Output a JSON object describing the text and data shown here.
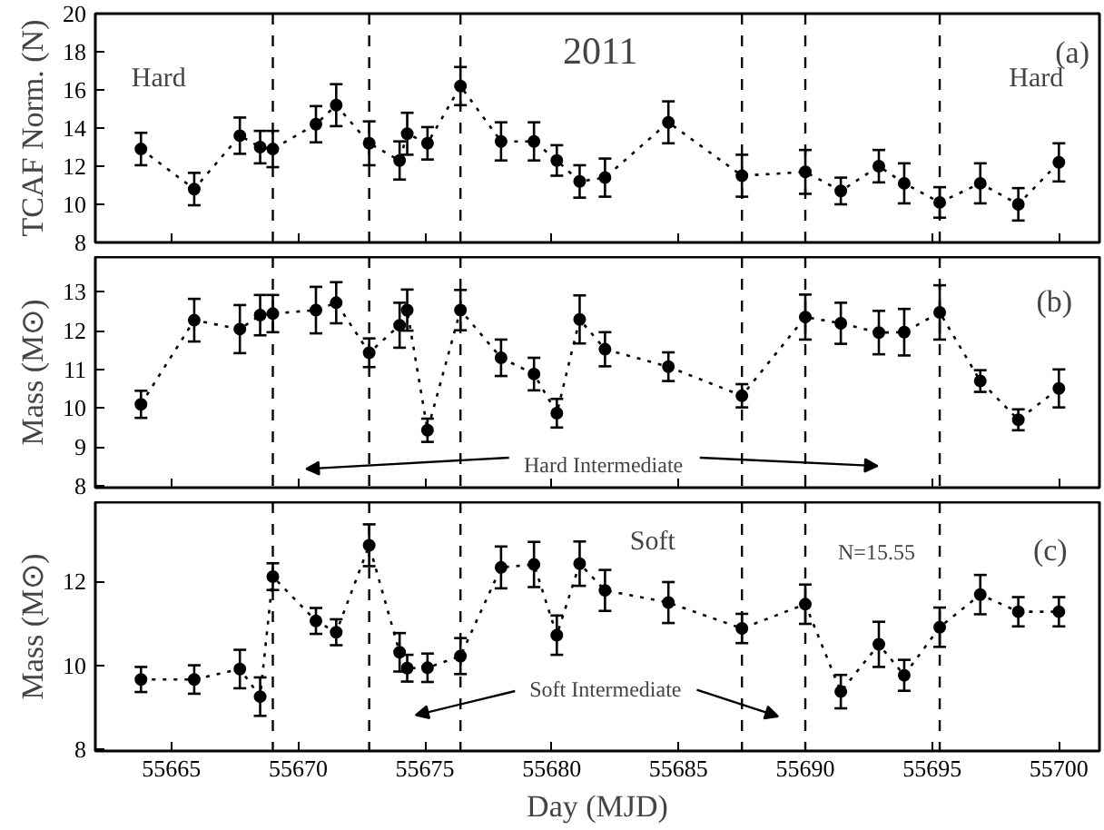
{
  "chart_data": [
    {
      "type": "line",
      "ylabel": "TCAF Norm. (N)",
      "annotations": [
        "2011",
        "Hard",
        "Hard",
        "(a)"
      ],
      "x": [
        55663.8,
        55665.9,
        55667.7,
        55668.5,
        55669.0,
        55670.7,
        55671.5,
        55672.8,
        55674.0,
        55674.3,
        55675.1,
        55676.4,
        55678.0,
        55679.3,
        55680.2,
        55681.1,
        55682.1,
        55684.6,
        55687.5,
        55690.0,
        55691.4,
        55692.9,
        55693.9,
        55695.3,
        55696.9,
        55698.4,
        55700.0
      ],
      "series": [
        {
          "color": "#000000",
          "values": [
            12.9,
            10.8,
            13.6,
            13.0,
            12.9,
            14.2,
            15.2,
            13.2,
            12.3,
            13.7,
            13.2,
            16.2,
            13.3,
            13.3,
            12.3,
            11.2,
            11.4,
            14.3,
            11.5,
            11.7,
            10.7,
            12.0,
            11.1,
            10.1,
            11.1,
            10.0,
            12.2
          ],
          "errors": [
            0.85,
            0.85,
            0.95,
            0.85,
            0.95,
            0.95,
            1.1,
            1.15,
            1.0,
            1.1,
            0.85,
            1.0,
            1.0,
            1.0,
            0.8,
            0.85,
            1.0,
            1.1,
            1.1,
            1.15,
            0.7,
            0.85,
            1.05,
            0.8,
            1.05,
            0.85,
            1.0
          ]
        }
      ],
      "xlim": [
        55662,
        55701.6
      ],
      "xticks": [
        55665,
        55670,
        55675,
        55680,
        55685,
        55690,
        55695,
        55700
      ],
      "ylim": [
        8,
        20
      ],
      "yticks": [
        8,
        10,
        12,
        14,
        16,
        18,
        20
      ],
      "tick_labels": "y",
      "grid": false,
      "marker": "circle",
      "line_style": "dotted",
      "ref_lines": [
        {
          "axis": "x",
          "value": 55669.0,
          "line_style": "dashed",
          "color": "#000000"
        },
        {
          "axis": "x",
          "value": 55672.8,
          "line_style": "dashed",
          "color": "#000000"
        },
        {
          "axis": "x",
          "value": 55676.4,
          "line_style": "dashed",
          "color": "#000000"
        },
        {
          "axis": "x",
          "value": 55687.5,
          "line_style": "dashed",
          "color": "#000000"
        },
        {
          "axis": "x",
          "value": 55690.0,
          "line_style": "dashed",
          "color": "#000000"
        },
        {
          "axis": "x",
          "value": 55695.3,
          "line_style": "dashed",
          "color": "#000000"
        }
      ]
    },
    {
      "type": "line",
      "ylabel": "Mass (M⊙)",
      "annotations": [
        "(b)",
        "Hard Intermediate"
      ],
      "x": [
        55663.8,
        55665.9,
        55667.7,
        55668.5,
        55669.0,
        55670.7,
        55671.5,
        55672.8,
        55674.0,
        55674.3,
        55675.1,
        55676.4,
        55678.0,
        55679.3,
        55680.2,
        55681.1,
        55682.1,
        55684.6,
        55687.5,
        55690.0,
        55691.4,
        55692.9,
        55693.9,
        55695.3,
        55696.9,
        55698.4,
        55700.0
      ],
      "series": [
        {
          "color": "#000000",
          "values": [
            10.1,
            12.27,
            12.04,
            12.4,
            12.44,
            12.53,
            12.72,
            11.43,
            12.14,
            12.53,
            9.43,
            12.53,
            11.3,
            10.88,
            9.87,
            12.29,
            11.52,
            11.07,
            10.32,
            12.35,
            12.19,
            11.95,
            11.96,
            12.47,
            10.7,
            9.7,
            10.51
          ],
          "errors": [
            0.35,
            0.55,
            0.62,
            0.52,
            0.48,
            0.6,
            0.53,
            0.37,
            0.58,
            0.53,
            0.3,
            0.52,
            0.47,
            0.42,
            0.37,
            0.62,
            0.44,
            0.37,
            0.3,
            0.58,
            0.53,
            0.56,
            0.6,
            0.7,
            0.28,
            0.27,
            0.49
          ]
        }
      ],
      "xlim": [
        55662,
        55701.6
      ],
      "xticks": [
        55665,
        55670,
        55675,
        55680,
        55685,
        55690,
        55695,
        55700
      ],
      "ylim": [
        7.95,
        13.9
      ],
      "yticks": [
        8,
        9,
        10,
        11,
        12,
        13
      ],
      "tick_labels": "y",
      "grid": false,
      "marker": "circle",
      "line_style": "dotted",
      "ref_lines": [
        {
          "axis": "x",
          "value": 55669.0,
          "line_style": "dashed",
          "color": "#000000"
        },
        {
          "axis": "x",
          "value": 55672.8,
          "line_style": "dashed",
          "color": "#000000"
        },
        {
          "axis": "x",
          "value": 55676.4,
          "line_style": "dashed",
          "color": "#000000"
        },
        {
          "axis": "x",
          "value": 55687.5,
          "line_style": "dashed",
          "color": "#000000"
        },
        {
          "axis": "x",
          "value": 55690.0,
          "line_style": "dashed",
          "color": "#000000"
        },
        {
          "axis": "x",
          "value": 55695.3,
          "line_style": "dashed",
          "color": "#000000"
        }
      ]
    },
    {
      "type": "line",
      "xlabel": "Day (MJD)",
      "ylabel": "Mass (M⊙)",
      "annotations": [
        "(c)",
        "Soft",
        "N=15.55",
        "Soft Intermediate"
      ],
      "x": [
        55663.8,
        55665.9,
        55667.7,
        55668.5,
        55669.0,
        55670.7,
        55671.5,
        55672.8,
        55674.0,
        55674.3,
        55675.1,
        55676.4,
        55678.0,
        55679.3,
        55680.2,
        55681.1,
        55682.1,
        55684.6,
        55687.5,
        55690.0,
        55691.4,
        55692.9,
        55693.9,
        55695.3,
        55696.9,
        55698.4,
        55700.0
      ],
      "series": [
        {
          "color": "#000000",
          "values": [
            9.66,
            9.66,
            9.91,
            9.25,
            12.12,
            11.06,
            10.79,
            12.87,
            10.31,
            9.93,
            9.94,
            10.22,
            12.34,
            12.41,
            10.72,
            12.43,
            11.79,
            11.5,
            10.88,
            11.46,
            9.37,
            10.5,
            9.76,
            10.91,
            11.69,
            11.28,
            11.28
          ],
          "errors": [
            0.3,
            0.34,
            0.46,
            0.46,
            0.32,
            0.31,
            0.31,
            0.5,
            0.46,
            0.32,
            0.34,
            0.43,
            0.5,
            0.54,
            0.47,
            0.53,
            0.49,
            0.49,
            0.35,
            0.47,
            0.4,
            0.54,
            0.37,
            0.47,
            0.47,
            0.35,
            0.35
          ]
        }
      ],
      "xlim": [
        55662,
        55701.6
      ],
      "xticks": [
        55665,
        55670,
        55675,
        55680,
        55685,
        55690,
        55695,
        55700
      ],
      "ylim": [
        7.95,
        13.9
      ],
      "yticks": [
        8,
        10,
        12
      ],
      "grid": false,
      "marker": "circle",
      "line_style": "dotted",
      "ref_lines": [
        {
          "axis": "x",
          "value": 55669.0,
          "line_style": "dashed",
          "color": "#000000"
        },
        {
          "axis": "x",
          "value": 55672.8,
          "line_style": "dashed",
          "color": "#000000"
        },
        {
          "axis": "x",
          "value": 55676.4,
          "line_style": "dashed",
          "color": "#000000"
        },
        {
          "axis": "x",
          "value": 55687.5,
          "line_style": "dashed",
          "color": "#000000"
        },
        {
          "axis": "x",
          "value": 55690.0,
          "line_style": "dashed",
          "color": "#000000"
        },
        {
          "axis": "x",
          "value": 55695.3,
          "line_style": "dashed",
          "color": "#000000"
        }
      ]
    }
  ]
}
